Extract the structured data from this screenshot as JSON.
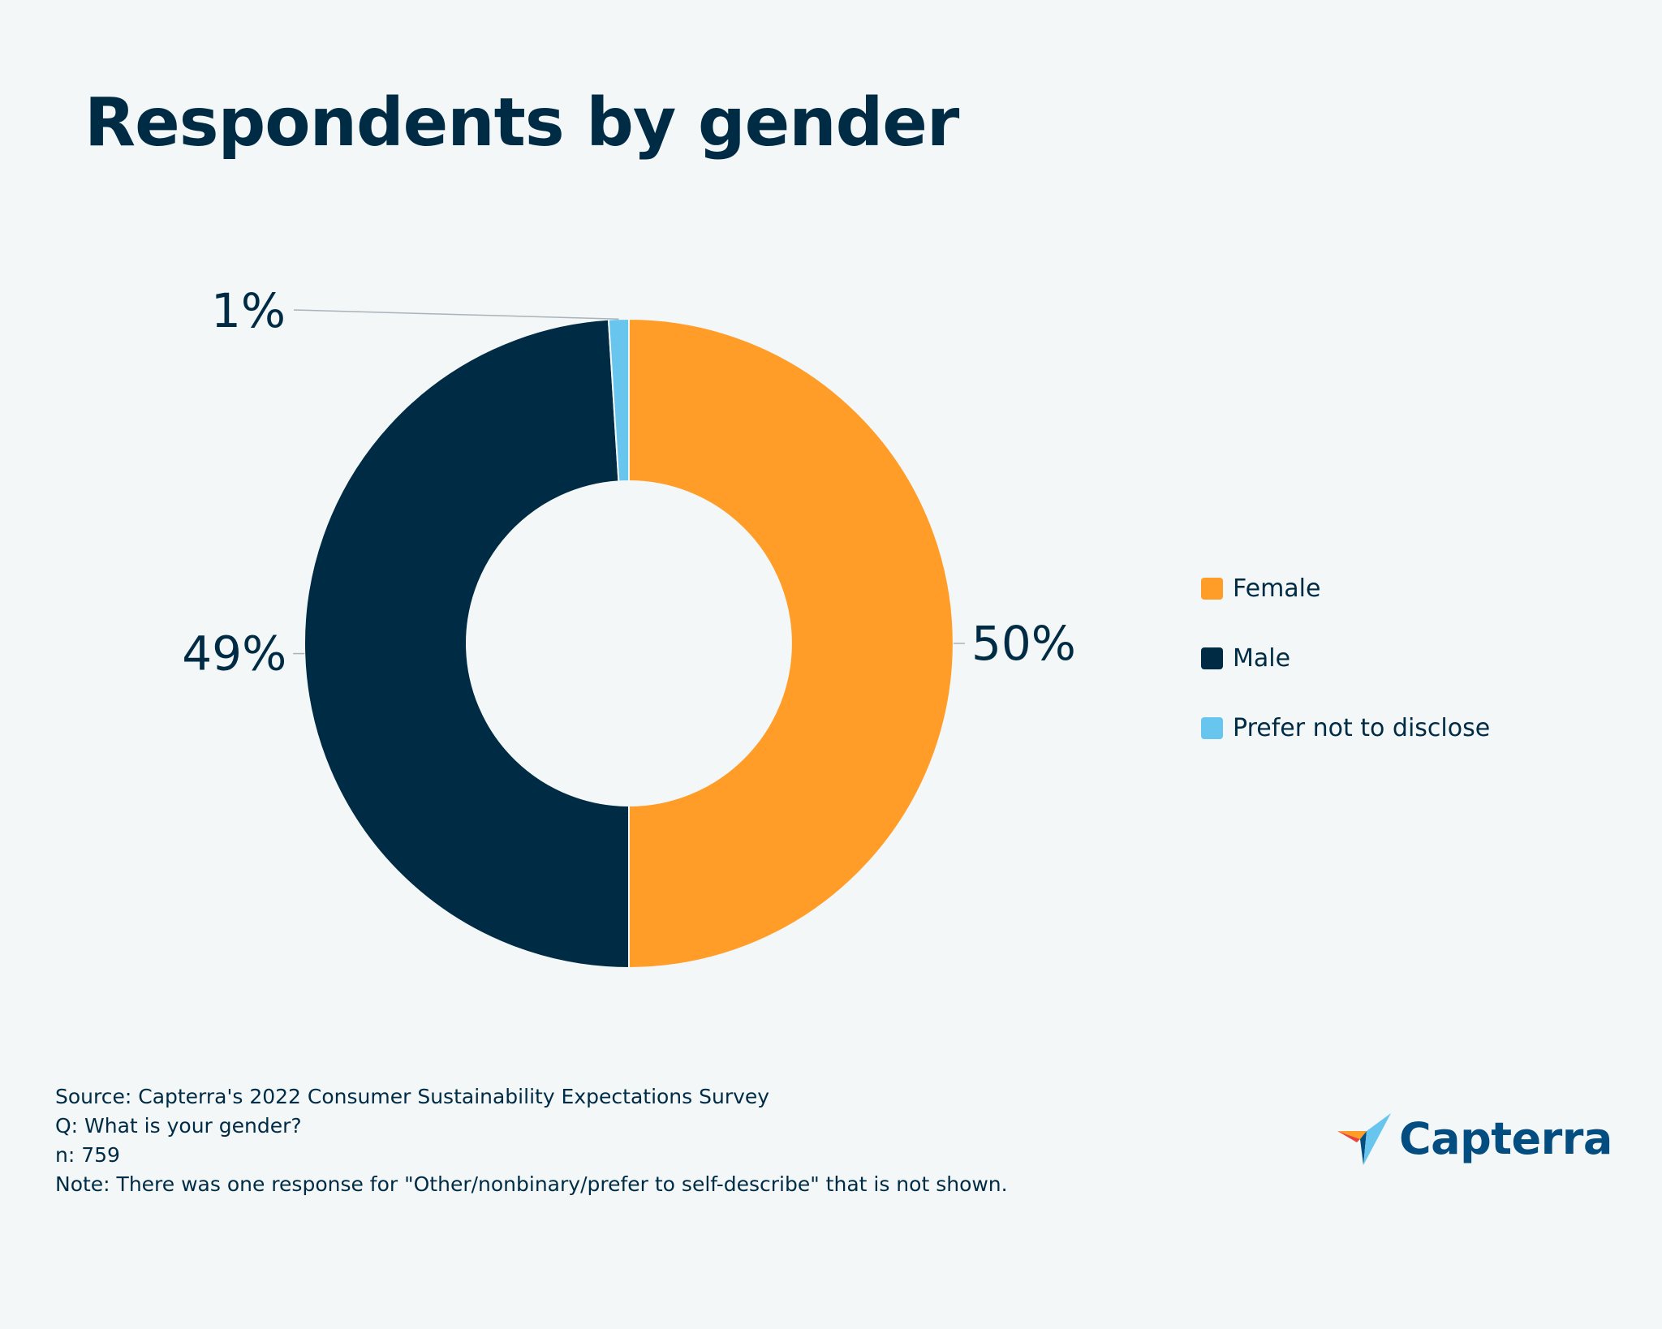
{
  "title": "Respondents by gender",
  "chart_data": {
    "type": "pie",
    "donut": true,
    "title": "Respondents by gender",
    "categories": [
      "Female",
      "Male",
      "Prefer not to disclose"
    ],
    "values": [
      50,
      49,
      1
    ],
    "labels": [
      "50%",
      "49%",
      "1%"
    ],
    "colors": [
      "#ff9d28",
      "#002b45",
      "#68c5ee"
    ],
    "legend_position": "right"
  },
  "legend": [
    {
      "label": "Female",
      "color": "#ff9d28"
    },
    {
      "label": "Male",
      "color": "#002b45"
    },
    {
      "label": "Prefer not to disclose",
      "color": "#68c5ee"
    }
  ],
  "footnotes": {
    "source": "Source: Capterra's 2022 Consumer Sustainability Expectations Survey",
    "question": "Q: What is your gender?",
    "n": "n: 759",
    "note": "Note: There was one response for \"Other/nonbinary/prefer to self-describe\" that is not shown."
  },
  "logo": {
    "text": "Capterra",
    "icon": "capterra-arrow-icon"
  }
}
